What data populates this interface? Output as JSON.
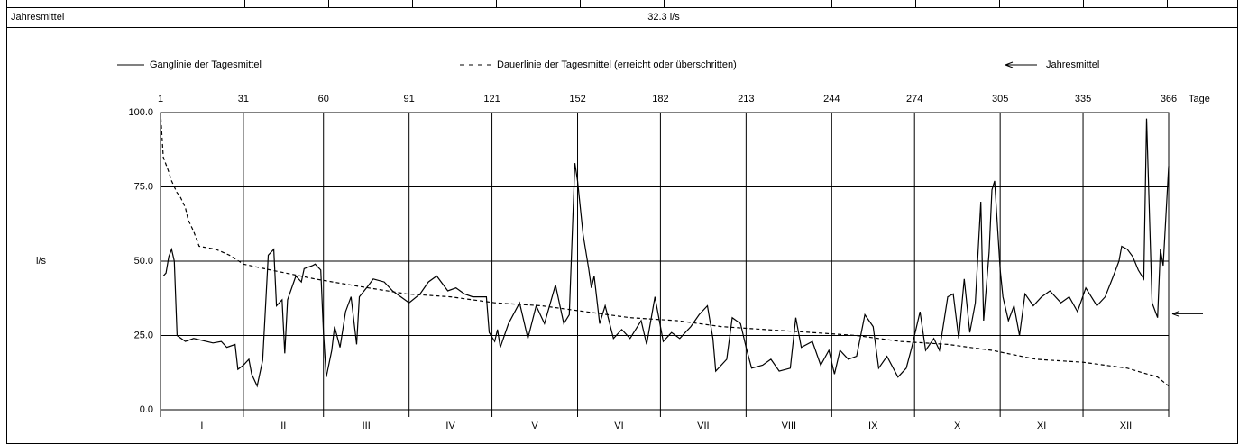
{
  "table": {
    "row_label": "Jahresmittel",
    "row_value": "32.3 l/s"
  },
  "chart_data": {
    "type": "line",
    "y_label": "l/s",
    "x_unit": "Tage",
    "xlim": [
      1,
      366
    ],
    "xticks": [
      1,
      31,
      60,
      91,
      121,
      152,
      182,
      213,
      244,
      274,
      305,
      335,
      366
    ],
    "ylim": [
      0,
      100
    ],
    "yticks": [
      {
        "value": 0,
        "label": "0.0"
      },
      {
        "value": 25,
        "label": "25.0"
      },
      {
        "value": 50,
        "label": "50.0"
      },
      {
        "value": 75,
        "label": "75.0"
      },
      {
        "value": 100,
        "label": "100.0"
      }
    ],
    "grid": true,
    "categories": [
      "I",
      "II",
      "III",
      "IV",
      "V",
      "VI",
      "VII",
      "VIII",
      "IX",
      "X",
      "XI",
      "XII"
    ],
    "mean": {
      "name": "Jahresmittel",
      "value": 32.3
    },
    "series": [
      {
        "name": "Ganglinie der Tagesmittel",
        "color": "#000000",
        "dash": false,
        "x": [
          2,
          3,
          4,
          5,
          6,
          7,
          10,
          13,
          20,
          23,
          25,
          28,
          29,
          31,
          33,
          34,
          36,
          38,
          40,
          42,
          43,
          45,
          46,
          47,
          50,
          52,
          53,
          56,
          57,
          59,
          60,
          61,
          63,
          64,
          66,
          68,
          70,
          72,
          73,
          76,
          78,
          82,
          85,
          88,
          91,
          95,
          98,
          101,
          105,
          108,
          111,
          114,
          119,
          120,
          122,
          123,
          124,
          127,
          131,
          134,
          137,
          140,
          144,
          147,
          149,
          151,
          152,
          154,
          156,
          157,
          158,
          160,
          162,
          165,
          168,
          171,
          175,
          177,
          180,
          183,
          186,
          189,
          193,
          196,
          199,
          201,
          202,
          206,
          208,
          211,
          213,
          215,
          219,
          222,
          225,
          229,
          231,
          233,
          237,
          240,
          243,
          245,
          247,
          250,
          253,
          256,
          259,
          261,
          264,
          268,
          271,
          273,
          276,
          278,
          281,
          283,
          286,
          288,
          290,
          292,
          294,
          296,
          298,
          299,
          301,
          302,
          303,
          305,
          306,
          308,
          310,
          312,
          314,
          317,
          320,
          323,
          327,
          330,
          333,
          336,
          340,
          343,
          346,
          348,
          349,
          351,
          353,
          355,
          357,
          358,
          360,
          362,
          363,
          364,
          366
        ],
        "values": [
          45,
          46,
          51.5,
          54,
          50,
          25,
          23,
          24,
          22.5,
          23,
          21,
          22,
          13.6,
          15,
          17,
          12,
          8,
          16.7,
          52,
          54,
          35,
          37,
          19,
          37,
          45,
          43,
          47.5,
          48.5,
          49,
          47,
          26,
          11,
          20,
          28,
          21,
          33,
          38,
          22,
          38,
          41.5,
          44,
          43,
          40,
          38,
          36,
          39,
          43,
          45,
          40,
          41,
          39,
          38,
          38,
          26,
          23,
          27,
          21,
          29,
          36,
          24,
          35,
          29,
          42,
          29,
          32,
          83,
          77,
          59,
          47.5,
          41,
          45,
          29,
          35,
          24,
          27,
          24,
          30,
          22,
          38,
          23,
          26,
          24,
          28,
          32,
          35,
          24,
          13,
          17,
          31,
          29,
          21,
          14,
          15,
          17,
          13,
          14,
          31,
          21,
          23,
          15,
          20,
          12,
          20,
          17,
          18,
          32,
          28,
          14,
          18,
          11,
          14,
          21,
          33,
          20,
          24,
          20,
          38,
          39,
          24,
          44,
          26,
          36,
          70,
          30,
          53,
          74,
          77,
          47,
          38,
          30,
          35,
          25,
          39,
          35,
          38,
          40,
          36,
          38,
          33,
          41,
          35,
          38,
          45,
          50,
          55,
          54,
          51.5,
          47,
          44,
          98,
          36,
          31,
          54,
          48.5,
          82
        ]
      },
      {
        "name": "Dauerlinie der Tagesmittel (erreicht oder überschritten)",
        "color": "#000000",
        "dash": true,
        "x": [
          1,
          2,
          4,
          5,
          7,
          8,
          10,
          11,
          13,
          15,
          21,
          26,
          31,
          41,
          57,
          73,
          90,
          106,
          122,
          139,
          155,
          171,
          188,
          204,
          220,
          237,
          253,
          269,
          286,
          302,
          318,
          335,
          351,
          362,
          366
        ],
        "values": [
          100,
          85,
          80,
          77,
          73,
          72,
          68,
          64,
          60,
          55,
          54,
          52,
          49,
          47,
          44,
          41.5,
          39,
          38,
          36,
          35,
          33,
          31,
          30,
          28,
          27,
          26,
          25,
          23,
          22,
          20,
          17,
          16,
          14,
          11,
          8
        ]
      }
    ]
  }
}
